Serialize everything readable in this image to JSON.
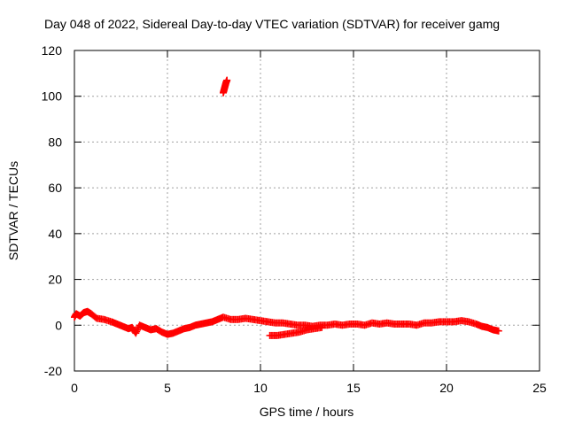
{
  "chart_data": {
    "type": "scatter",
    "title": "Day 048 of 2022, Sidereal Day-to-day VTEC variation (SDTVAR) for receiver gamg",
    "xlabel": "GPS time / hours",
    "ylabel": "SDTVAR / TECUs",
    "xlim": [
      0,
      25
    ],
    "ylim": [
      -20,
      120
    ],
    "xticks": [
      0,
      5,
      10,
      15,
      20,
      25
    ],
    "yticks": [
      -20,
      0,
      20,
      40,
      60,
      80,
      100,
      120
    ],
    "grid": true,
    "series": [
      {
        "name": "SDTVAR",
        "color": "#ff0000",
        "marker": "plus",
        "points": [
          [
            0.0,
            3.5
          ],
          [
            0.1,
            5.0
          ],
          [
            0.3,
            4.0
          ],
          [
            0.5,
            5.5
          ],
          [
            0.7,
            6.0
          ],
          [
            0.9,
            5.0
          ],
          [
            1.2,
            3.0
          ],
          [
            1.6,
            2.5
          ],
          [
            2.0,
            1.5
          ],
          [
            2.3,
            0.5
          ],
          [
            2.6,
            -0.5
          ],
          [
            2.9,
            -1.5
          ],
          [
            3.1,
            -1.0
          ],
          [
            3.3,
            -3.5
          ],
          [
            3.5,
            0.0
          ],
          [
            3.8,
            -1.0
          ],
          [
            4.1,
            -2.0
          ],
          [
            4.4,
            -1.5
          ],
          [
            4.7,
            -3.0
          ],
          [
            5.0,
            -4.0
          ],
          [
            5.3,
            -3.5
          ],
          [
            5.6,
            -2.5
          ],
          [
            5.9,
            -1.5
          ],
          [
            6.2,
            -1.0
          ],
          [
            6.5,
            0.0
          ],
          [
            6.8,
            0.5
          ],
          [
            7.1,
            1.0
          ],
          [
            7.4,
            1.5
          ],
          [
            7.7,
            2.5
          ],
          [
            8.0,
            3.5
          ],
          [
            8.4,
            2.5
          ],
          [
            8.8,
            2.5
          ],
          [
            9.2,
            3.0
          ],
          [
            9.6,
            2.5
          ],
          [
            10.0,
            2.0
          ],
          [
            10.4,
            1.5
          ],
          [
            10.8,
            1.0
          ],
          [
            11.2,
            1.0
          ],
          [
            11.6,
            0.5
          ],
          [
            12.0,
            0.0
          ],
          [
            12.4,
            0.0
          ],
          [
            12.8,
            -0.5
          ],
          [
            13.2,
            0.0
          ],
          [
            13.6,
            0.0
          ],
          [
            14.0,
            0.5
          ],
          [
            14.4,
            0.0
          ],
          [
            14.8,
            0.5
          ],
          [
            15.2,
            0.5
          ],
          [
            15.6,
            0.0
          ],
          [
            16.0,
            1.0
          ],
          [
            16.4,
            0.5
          ],
          [
            16.8,
            1.0
          ],
          [
            17.2,
            0.5
          ],
          [
            17.6,
            0.5
          ],
          [
            18.0,
            0.5
          ],
          [
            18.4,
            0.0
          ],
          [
            18.8,
            1.0
          ],
          [
            19.2,
            1.0
          ],
          [
            19.6,
            1.5
          ],
          [
            20.0,
            1.5
          ],
          [
            20.4,
            1.5
          ],
          [
            20.8,
            2.0
          ],
          [
            21.2,
            1.5
          ],
          [
            21.6,
            0.5
          ],
          [
            21.9,
            -0.5
          ],
          [
            22.2,
            -1.0
          ],
          [
            22.5,
            -2.0
          ],
          [
            22.8,
            -2.5
          ],
          [
            10.5,
            -4.5
          ],
          [
            10.9,
            -4.5
          ],
          [
            11.3,
            -4.0
          ],
          [
            11.7,
            -3.5
          ],
          [
            12.1,
            -3.0
          ],
          [
            12.5,
            -2.0
          ],
          [
            12.9,
            -1.5
          ],
          [
            13.3,
            -1.0
          ],
          [
            8.0,
            101.5
          ],
          [
            8.05,
            103.0
          ],
          [
            8.1,
            104.5
          ],
          [
            8.15,
            106.0
          ],
          [
            8.2,
            107.0
          ]
        ]
      }
    ]
  }
}
